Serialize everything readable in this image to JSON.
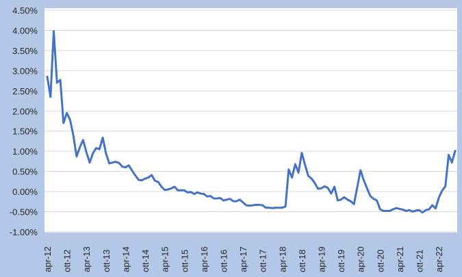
{
  "colors": {
    "background": "#b4c7e7",
    "plot_background": "#ffffff",
    "gridline": "#d9d9d9",
    "series": "#4472c4",
    "text": "#262626"
  },
  "chart_data": {
    "type": "line",
    "title": "",
    "xlabel": "",
    "ylabel": "",
    "grid": true,
    "legend": "none",
    "ylim": [
      -0.01,
      0.045
    ],
    "y_ticks": [
      0.045,
      0.04,
      0.035,
      0.03,
      0.025,
      0.02,
      0.015,
      0.01,
      0.005,
      0.0,
      -0.005,
      -0.01
    ],
    "y_tick_labels": [
      "4.50%",
      "4.00%",
      "3.50%",
      "3.00%",
      "2.50%",
      "2.00%",
      "1.50%",
      "1.00%",
      "0.50%",
      "0.00%",
      "-0.50%",
      "-1.00%"
    ],
    "x_tick_labels": [
      "apr-12",
      "ott-12",
      "apr-13",
      "ott-13",
      "apr-14",
      "ott-14",
      "apr-15",
      "ott-15",
      "apr-16",
      "ott-16",
      "apr-17",
      "ott-17",
      "apr-18",
      "ott-18",
      "apr-19",
      "ott-19",
      "apr-20",
      "ott-20",
      "apr-21",
      "ott-21",
      "apr-22"
    ],
    "x_tick_start_month": "2012-04",
    "x_tick_step_months": 6,
    "x": [
      "2012-04",
      "2012-05",
      "2012-06",
      "2012-07",
      "2012-08",
      "2012-09",
      "2012-10",
      "2012-11",
      "2012-12",
      "2013-01",
      "2013-02",
      "2013-03",
      "2013-04",
      "2013-05",
      "2013-06",
      "2013-07",
      "2013-08",
      "2013-09",
      "2013-10",
      "2013-11",
      "2013-12",
      "2014-01",
      "2014-02",
      "2014-03",
      "2014-04",
      "2014-05",
      "2014-06",
      "2014-07",
      "2014-08",
      "2014-09",
      "2014-10",
      "2014-11",
      "2014-12",
      "2015-01",
      "2015-02",
      "2015-03",
      "2015-04",
      "2015-05",
      "2015-06",
      "2015-07",
      "2015-08",
      "2015-09",
      "2015-10",
      "2015-11",
      "2015-12",
      "2016-01",
      "2016-02",
      "2016-03",
      "2016-04",
      "2016-05",
      "2016-06",
      "2016-07",
      "2016-08",
      "2016-09",
      "2016-10",
      "2016-11",
      "2016-12",
      "2017-01",
      "2017-02",
      "2017-03",
      "2017-04",
      "2017-05",
      "2017-06",
      "2017-07",
      "2017-08",
      "2017-09",
      "2017-10",
      "2017-11",
      "2017-12",
      "2018-01",
      "2018-02",
      "2018-03",
      "2018-04",
      "2018-05",
      "2018-06",
      "2018-07",
      "2018-08",
      "2018-09",
      "2018-10",
      "2018-11",
      "2018-12",
      "2019-01",
      "2019-02",
      "2019-03",
      "2019-04",
      "2019-05",
      "2019-06",
      "2019-07",
      "2019-08",
      "2019-09",
      "2019-10",
      "2019-11",
      "2019-12",
      "2020-01",
      "2020-02",
      "2020-03",
      "2020-04",
      "2020-05",
      "2020-06",
      "2020-07",
      "2020-08",
      "2020-09",
      "2020-10",
      "2020-11",
      "2020-12",
      "2021-01",
      "2021-02",
      "2021-03",
      "2021-04",
      "2021-05",
      "2021-06",
      "2021-07",
      "2021-08",
      "2021-09",
      "2021-10",
      "2021-11",
      "2021-12",
      "2022-01",
      "2022-02",
      "2022-03",
      "2022-04",
      "2022-05",
      "2022-06",
      "2022-07",
      "2022-08",
      "2022-09"
    ],
    "series": [
      {
        "values": [
          0.0285,
          0.0235,
          0.0398,
          0.027,
          0.0277,
          0.017,
          0.0195,
          0.0178,
          0.014,
          0.0087,
          0.011,
          0.0128,
          0.0098,
          0.0072,
          0.0095,
          0.0108,
          0.0105,
          0.0134,
          0.0095,
          0.007,
          0.0072,
          0.0074,
          0.0071,
          0.0062,
          0.006,
          0.0065,
          0.0052,
          0.004,
          0.0029,
          0.0028,
          0.0032,
          0.0035,
          0.0041,
          0.0027,
          0.0024,
          0.0012,
          0.0004,
          0.0005,
          0.0008,
          0.0012,
          0.0003,
          0.0003,
          0.0003,
          -0.0002,
          -0.0001,
          -0.0006,
          -0.0002,
          -0.0005,
          -0.0006,
          -0.0012,
          -0.0011,
          -0.0017,
          -0.0017,
          -0.0016,
          -0.0022,
          -0.002,
          -0.0018,
          -0.0024,
          -0.0024,
          -0.002,
          -0.0027,
          -0.0034,
          -0.0035,
          -0.0034,
          -0.0033,
          -0.0033,
          -0.0034,
          -0.004,
          -0.004,
          -0.0041,
          -0.004,
          -0.004,
          -0.004,
          -0.0037,
          0.0055,
          0.0035,
          0.0068,
          0.0047,
          0.0096,
          0.0066,
          0.0039,
          0.0032,
          0.0021,
          0.0007,
          0.0008,
          0.0013,
          0.0009,
          -0.0005,
          0.0012,
          -0.0022,
          -0.002,
          -0.0014,
          -0.002,
          -0.0024,
          -0.0031,
          0.0011,
          0.0053,
          0.0028,
          0.0008,
          -0.0011,
          -0.0018,
          -0.0022,
          -0.0044,
          -0.0048,
          -0.0048,
          -0.0048,
          -0.0044,
          -0.0041,
          -0.0043,
          -0.0045,
          -0.0048,
          -0.0046,
          -0.005,
          -0.0047,
          -0.0046,
          -0.0052,
          -0.0046,
          -0.0044,
          -0.0034,
          -0.0042,
          -0.0015,
          0.0002,
          0.0013,
          0.0091,
          0.0072,
          0.0101
        ]
      }
    ]
  }
}
